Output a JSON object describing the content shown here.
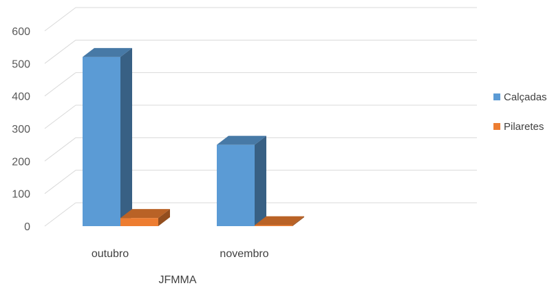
{
  "chart_data": {
    "type": "bar",
    "style": "3d-clustered-column",
    "categories": [
      "outubro",
      "novembro"
    ],
    "series": [
      {
        "name": "Calçadas",
        "values": [
          520,
          250
        ],
        "color": "#5B9BD5"
      },
      {
        "name": "Pilaretes",
        "values": [
          25,
          3
        ],
        "color": "#ED7D31"
      }
    ],
    "xlabel": "JFMMA",
    "ylabel": "",
    "ylim": [
      0,
      600
    ],
    "yticks": [
      0,
      100,
      200,
      300,
      400,
      500,
      600
    ],
    "grid": true,
    "legend": "right"
  }
}
